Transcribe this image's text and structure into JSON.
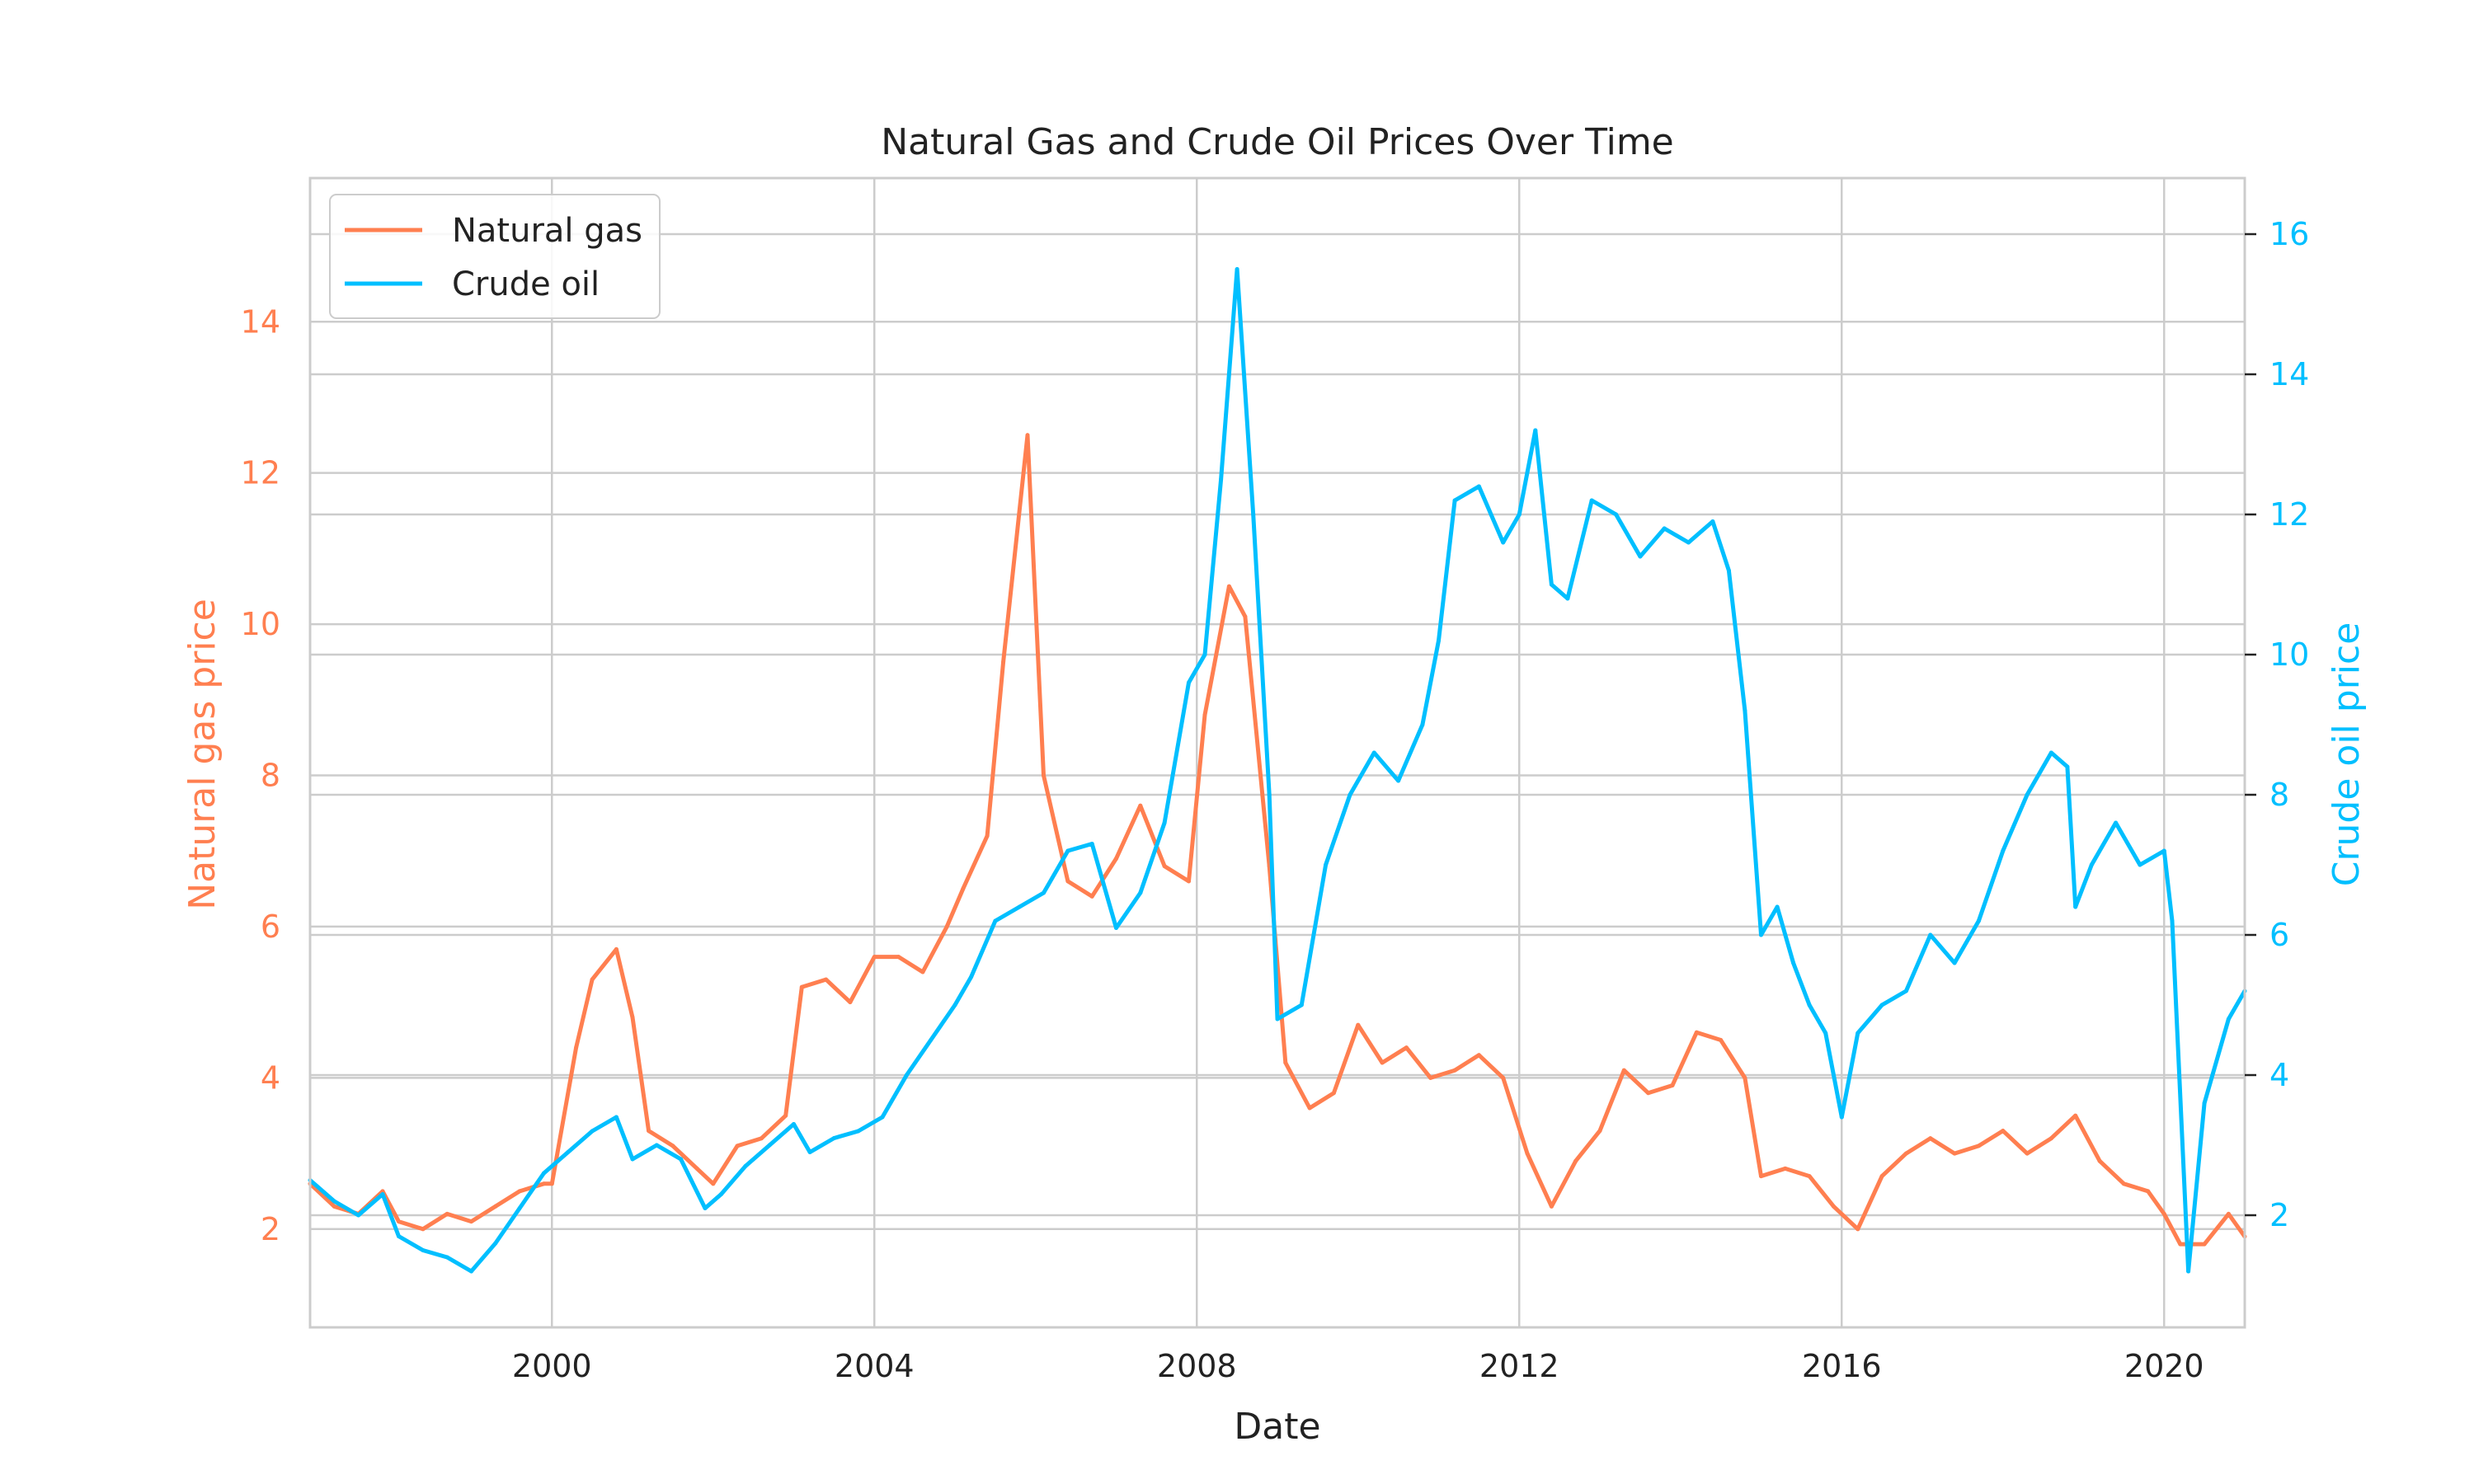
{
  "chart_data": {
    "type": "line",
    "title": "Natural Gas and Crude Oil Prices Over Time",
    "xlabel": "Date",
    "ylabel_left": "Natural gas price",
    "ylabel_right": "Crude oil price",
    "xlim": [
      1997.0,
      2021.0
    ],
    "ylim_left": [
      0.7,
      15.9
    ],
    "ylim_right": [
      0.4,
      16.8
    ],
    "x_ticks": [
      2000,
      2004,
      2008,
      2012,
      2016,
      2020
    ],
    "x_tick_labels": [
      "2000",
      "2004",
      "2008",
      "2012",
      "2016",
      "2020"
    ],
    "y_left_ticks": [
      2,
      4,
      6,
      8,
      10,
      12,
      14
    ],
    "y_left_tick_labels": [
      "2",
      "4",
      "6",
      "8",
      "10",
      "12",
      "14"
    ],
    "y_right_ticks": [
      2,
      4,
      6,
      8,
      10,
      12,
      14,
      16
    ],
    "y_right_tick_labels": [
      "2",
      "4",
      "6",
      "8",
      "10",
      "12",
      "14",
      "16"
    ],
    "grid": true,
    "legend_position": "top-left",
    "legend": [
      "Natural gas",
      "Crude oil"
    ],
    "colors": {
      "natural_gas": "#ff7f50",
      "crude_oil": "#00bfff",
      "grid": "#cccccc",
      "spine": "#cccccc",
      "text": "#222222"
    },
    "series": [
      {
        "name": "Natural gas",
        "axis": "left",
        "color": "#ff7f50",
        "x": [
          1997.0,
          1997.3,
          1997.6,
          1997.9,
          1998.1,
          1998.4,
          1998.7,
          1999.0,
          1999.3,
          1999.6,
          1999.9,
          2000.0,
          2000.3,
          2000.5,
          2000.8,
          2001.0,
          2001.2,
          2001.5,
          2001.8,
          2002.0,
          2002.3,
          2002.6,
          2002.9,
          2003.1,
          2003.4,
          2003.7,
          2004.0,
          2004.3,
          2004.6,
          2004.9,
          2005.1,
          2005.4,
          2005.6,
          2005.9,
          2006.1,
          2006.4,
          2006.7,
          2007.0,
          2007.3,
          2007.6,
          2007.9,
          2008.1,
          2008.4,
          2008.6,
          2008.9,
          2009.1,
          2009.4,
          2009.7,
          2010.0,
          2010.3,
          2010.6,
          2010.9,
          2011.2,
          2011.5,
          2011.8,
          2012.1,
          2012.4,
          2012.7,
          2013.0,
          2013.3,
          2013.6,
          2013.9,
          2014.2,
          2014.5,
          2014.8,
          2015.0,
          2015.3,
          2015.6,
          2015.9,
          2016.2,
          2016.5,
          2016.8,
          2017.1,
          2017.4,
          2017.7,
          2018.0,
          2018.3,
          2018.6,
          2018.9,
          2019.2,
          2019.5,
          2019.8,
          2020.0,
          2020.2,
          2020.5,
          2020.8,
          2021.0
        ],
        "values": [
          2.6,
          2.3,
          2.2,
          2.5,
          2.1,
          2.0,
          2.2,
          2.1,
          2.3,
          2.5,
          2.6,
          2.6,
          4.4,
          5.3,
          5.7,
          4.8,
          3.3,
          3.1,
          2.8,
          2.6,
          3.1,
          3.2,
          3.5,
          5.2,
          5.3,
          5.0,
          5.6,
          5.6,
          5.4,
          6.0,
          6.5,
          7.2,
          9.5,
          12.5,
          8.0,
          6.6,
          6.4,
          6.9,
          7.6,
          6.8,
          6.6,
          8.8,
          10.5,
          10.1,
          6.8,
          4.2,
          3.6,
          3.8,
          4.7,
          4.2,
          4.4,
          4.0,
          4.1,
          4.3,
          4.0,
          3.0,
          2.3,
          2.9,
          3.3,
          4.1,
          3.8,
          3.9,
          4.6,
          4.5,
          4.0,
          2.7,
          2.8,
          2.7,
          2.3,
          2.0,
          2.7,
          3.0,
          3.2,
          3.0,
          3.1,
          3.3,
          3.0,
          3.2,
          3.5,
          2.9,
          2.6,
          2.5,
          2.2,
          1.8,
          1.8,
          2.2,
          1.9
        ]
      },
      {
        "name": "Crude oil",
        "axis": "right",
        "color": "#00bfff",
        "x": [
          1997.0,
          1997.3,
          1997.6,
          1997.9,
          1998.1,
          1998.4,
          1998.7,
          1999.0,
          1999.3,
          1999.6,
          1999.9,
          2000.2,
          2000.5,
          2000.8,
          2001.0,
          2001.3,
          2001.6,
          2001.9,
          2002.1,
          2002.4,
          2002.7,
          2003.0,
          2003.2,
          2003.5,
          2003.8,
          2004.1,
          2004.4,
          2004.7,
          2005.0,
          2005.2,
          2005.5,
          2005.8,
          2006.1,
          2006.4,
          2006.7,
          2007.0,
          2007.3,
          2007.6,
          2007.9,
          2008.1,
          2008.3,
          2008.5,
          2008.7,
          2008.9,
          2009.0,
          2009.3,
          2009.6,
          2009.9,
          2010.2,
          2010.5,
          2010.8,
          2011.0,
          2011.2,
          2011.5,
          2011.8,
          2012.0,
          2012.2,
          2012.4,
          2012.6,
          2012.9,
          2013.2,
          2013.5,
          2013.8,
          2014.1,
          2014.4,
          2014.6,
          2014.8,
          2015.0,
          2015.2,
          2015.4,
          2015.6,
          2015.8,
          2016.0,
          2016.2,
          2016.5,
          2016.8,
          2017.1,
          2017.4,
          2017.7,
          2018.0,
          2018.3,
          2018.6,
          2018.8,
          2018.9,
          2019.1,
          2019.4,
          2019.7,
          2020.0,
          2020.1,
          2020.3,
          2020.5,
          2020.8,
          2021.0
        ],
        "values": [
          2.5,
          2.2,
          2.0,
          2.3,
          1.7,
          1.5,
          1.4,
          1.2,
          1.6,
          2.1,
          2.6,
          2.9,
          3.2,
          3.4,
          2.8,
          3.0,
          2.8,
          2.1,
          2.3,
          2.7,
          3.0,
          3.3,
          2.9,
          3.1,
          3.2,
          3.4,
          4.0,
          4.5,
          5.0,
          5.4,
          6.2,
          6.4,
          6.6,
          7.2,
          7.3,
          6.1,
          6.6,
          7.6,
          9.6,
          10.0,
          12.5,
          15.5,
          12.0,
          8.0,
          4.8,
          5.0,
          7.0,
          8.0,
          8.6,
          8.2,
          9.0,
          10.2,
          12.2,
          12.4,
          11.6,
          12.0,
          13.2,
          11.0,
          10.8,
          12.2,
          12.0,
          11.4,
          11.8,
          11.6,
          11.9,
          11.2,
          9.2,
          6.0,
          6.4,
          5.6,
          5.0,
          4.6,
          3.4,
          4.6,
          5.0,
          5.2,
          6.0,
          5.6,
          6.2,
          7.2,
          8.0,
          8.6,
          8.4,
          6.4,
          7.0,
          7.6,
          7.0,
          7.2,
          6.2,
          1.2,
          3.6,
          4.8,
          5.2
        ]
      }
    ]
  }
}
